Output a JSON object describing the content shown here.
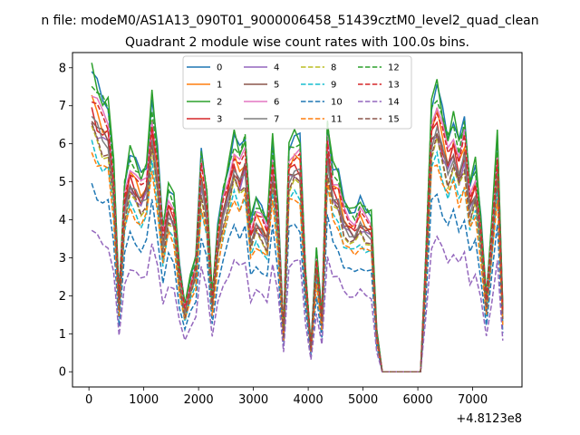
{
  "chart_data": {
    "type": "line",
    "suptitle": "n file: modeM0/AS1A13_090T01_9000006458_51439cztM0_level2_quad_clean",
    "title": "Quadrant 2 module wise count rates with 100.0s bins.",
    "xlabel": "",
    "ylabel": "",
    "x_offset_label": "+4.8123e8",
    "xlim": [
      -300,
      7900
    ],
    "ylim": [
      -0.4,
      8.4
    ],
    "xticks": [
      0,
      1000,
      2000,
      3000,
      4000,
      5000,
      6000,
      7000
    ],
    "yticks": [
      0,
      1,
      2,
      3,
      4,
      5,
      6,
      7,
      8
    ],
    "legend_position": "top-center",
    "grid": false,
    "x": [
      50,
      150,
      250,
      350,
      450,
      550,
      650,
      750,
      850,
      950,
      1050,
      1150,
      1250,
      1350,
      1450,
      1550,
      1650,
      1750,
      1850,
      1950,
      2050,
      2150,
      2250,
      2350,
      2450,
      2550,
      2650,
      2750,
      2850,
      2950,
      3050,
      3150,
      3250,
      3350,
      3450,
      3550,
      3650,
      3750,
      3850,
      3950,
      4050,
      4150,
      4250,
      4350,
      4450,
      4550,
      4650,
      4750,
      4850,
      4950,
      5050,
      5150,
      5250,
      5350,
      5450,
      5550,
      5650,
      5750,
      5850,
      5950,
      6050,
      6150,
      6250,
      6350,
      6450,
      6550,
      6650,
      6750,
      6850,
      6950,
      7050,
      7150,
      7250,
      7350,
      7450,
      7550
    ],
    "base_profile": [
      7.9,
      7.5,
      7.2,
      7.1,
      5.5,
      2.0,
      5.0,
      5.8,
      5.5,
      5.2,
      5.5,
      7.2,
      5.8,
      3.8,
      4.9,
      4.6,
      2.8,
      1.8,
      2.5,
      3.0,
      5.8,
      4.8,
      2.0,
      3.8,
      4.8,
      5.5,
      6.2,
      5.8,
      6.2,
      4.0,
      4.5,
      4.3,
      4.0,
      6.1,
      4.3,
      1.1,
      6.0,
      6.2,
      6.1,
      2.7,
      0.7,
      3.2,
      1.5,
      6.6,
      5.4,
      5.2,
      4.5,
      4.3,
      4.2,
      4.5,
      4.3,
      4.2,
      1.1,
      0.0,
      0.0,
      0.0,
      0.0,
      0.0,
      0.0,
      0.0,
      0.0,
      3.2,
      7.1,
      7.5,
      6.8,
      6.2,
      6.7,
      6.0,
      6.6,
      5.0,
      5.5,
      4.0,
      2.0,
      4.0,
      6.2,
      1.7
    ],
    "series": [
      {
        "name": "0",
        "color": "#1f77b4",
        "dash": "solid",
        "scale": 1.0
      },
      {
        "name": "1",
        "color": "#ff7f0e",
        "dash": "solid",
        "scale": 0.9
      },
      {
        "name": "2",
        "color": "#2ca02c",
        "dash": "solid",
        "scale": 1.0
      },
      {
        "name": "3",
        "color": "#d62728",
        "dash": "solid",
        "scale": 0.87
      },
      {
        "name": "4",
        "color": "#9467bd",
        "dash": "solid",
        "scale": 0.84
      },
      {
        "name": "5",
        "color": "#8c564b",
        "dash": "solid",
        "scale": 0.86
      },
      {
        "name": "6",
        "color": "#e377c2",
        "dash": "solid",
        "scale": 0.94
      },
      {
        "name": "7",
        "color": "#7f7f7f",
        "dash": "solid",
        "scale": 0.85
      },
      {
        "name": "8",
        "color": "#bcbd22",
        "dash": "dashed",
        "scale": 0.8
      },
      {
        "name": "9",
        "color": "#17becf",
        "dash": "dashed",
        "scale": 0.75
      },
      {
        "name": "10",
        "color": "#1f77b4",
        "dash": "dashed",
        "scale": 0.62
      },
      {
        "name": "11",
        "color": "#ff7f0e",
        "dash": "dashed",
        "scale": 0.74
      },
      {
        "name": "12",
        "color": "#2ca02c",
        "dash": "dashed",
        "scale": 0.98
      },
      {
        "name": "13",
        "color": "#d62728",
        "dash": "dashed",
        "scale": 0.92
      },
      {
        "name": "14",
        "color": "#9467bd",
        "dash": "dashed",
        "scale": 0.47
      },
      {
        "name": "15",
        "color": "#8c564b",
        "dash": "dashed",
        "scale": 0.81
      }
    ]
  }
}
